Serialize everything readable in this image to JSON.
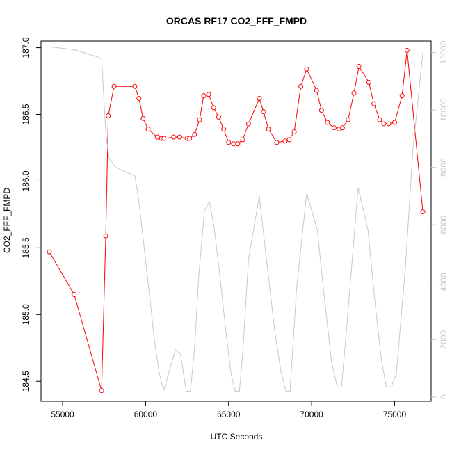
{
  "chart_data": {
    "type": "line",
    "title": "ORCAS RF17 CO2_FFF_FMPD",
    "xlabel": "UTC Seconds",
    "ylabel": "CO2_FFF_FMPD",
    "xlim": [
      53700,
      77200
    ],
    "ylim": [
      184.35,
      187.05
    ],
    "y2lim": [
      -150,
      12400
    ],
    "x_ticks": [
      55000,
      60000,
      65000,
      70000,
      75000
    ],
    "x_tick_labels": [
      "55000",
      "60000",
      "65000",
      "70000",
      "75000"
    ],
    "y_ticks": [
      184.5,
      185.0,
      185.5,
      186.0,
      186.5,
      187.0
    ],
    "y_tick_labels": [
      "184.5",
      "185.0",
      "185.5",
      "186.0",
      "186.5",
      "187.0"
    ],
    "y2_ticks": [
      0,
      2000,
      4000,
      6000,
      8000,
      10000,
      12000
    ],
    "y2_tick_labels": [
      "0",
      "2000",
      "4000",
      "6000",
      "8000",
      "10000",
      "12000"
    ],
    "grid": false,
    "colors": {
      "primary": "#ff0000",
      "secondary": "#c8c8c8",
      "axis": "#000000"
    },
    "series": [
      {
        "axis": "left",
        "style": "line+markers",
        "x": [
          54200,
          55700,
          57350,
          57600,
          57750,
          58100,
          59350,
          59600,
          59850,
          60150,
          60700,
          60950,
          61100,
          61700,
          62050,
          62500,
          62650,
          62950,
          63250,
          63500,
          63800,
          64100,
          64400,
          64700,
          65000,
          65300,
          65550,
          65850,
          66200,
          66850,
          67100,
          67400,
          67900,
          68400,
          68650,
          68950,
          69350,
          69700,
          70300,
          70600,
          70950,
          71350,
          71650,
          71850,
          72200,
          72550,
          72850,
          73450,
          73750,
          74100,
          74350,
          74650,
          75000,
          75450,
          75750,
          76700
        ],
        "y": [
          185.47,
          185.15,
          184.43,
          185.59,
          186.49,
          186.71,
          186.71,
          186.62,
          186.47,
          186.39,
          186.33,
          186.32,
          186.32,
          186.33,
          186.33,
          186.32,
          186.32,
          186.35,
          186.46,
          186.64,
          186.65,
          186.55,
          186.48,
          186.39,
          186.29,
          186.28,
          186.28,
          186.31,
          186.43,
          186.62,
          186.52,
          186.39,
          186.29,
          186.3,
          186.31,
          186.37,
          186.71,
          186.84,
          186.68,
          186.53,
          186.44,
          186.4,
          186.39,
          186.4,
          186.46,
          186.66,
          186.86,
          186.74,
          186.58,
          186.46,
          186.43,
          186.43,
          186.44,
          186.64,
          186.98,
          185.77
        ]
      },
      {
        "axis": "right",
        "style": "line",
        "x": [
          54200,
          55700,
          57350,
          57600,
          57800,
          58200,
          59350,
          59550,
          59800,
          60050,
          60300,
          60550,
          60800,
          61000,
          61100,
          61800,
          62100,
          62450,
          62700,
          62950,
          63200,
          63550,
          63850,
          64150,
          64500,
          64850,
          65150,
          65400,
          65650,
          65850,
          66200,
          66850,
          67100,
          67500,
          67800,
          68150,
          68450,
          68700,
          69100,
          69700,
          70350,
          70650,
          71200,
          71550,
          71800,
          72050,
          72800,
          73400,
          73800,
          74200,
          74500,
          74800,
          75100,
          75650,
          76100,
          76700
        ],
        "y": [
          12200,
          12100,
          11800,
          9200,
          8300,
          8000,
          7700,
          7000,
          5800,
          4500,
          3200,
          1900,
          900,
          400,
          250,
          1650,
          1500,
          200,
          200,
          1700,
          4200,
          6500,
          6800,
          5800,
          4100,
          2200,
          800,
          200,
          200,
          1500,
          4800,
          7000,
          5700,
          3700,
          2200,
          900,
          200,
          200,
          3800,
          7100,
          5800,
          4100,
          1200,
          350,
          350,
          2000,
          7300,
          5800,
          3400,
          1300,
          350,
          350,
          800,
          4500,
          8600,
          12000
        ]
      }
    ]
  }
}
